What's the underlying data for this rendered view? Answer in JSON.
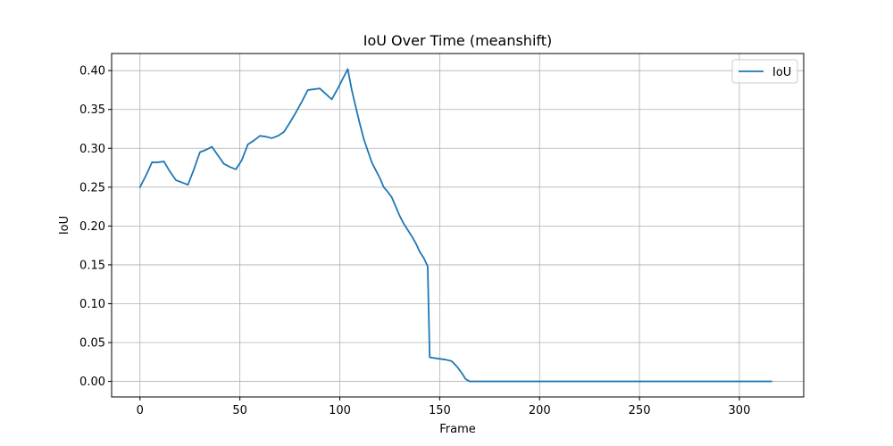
{
  "chart_data": {
    "type": "line",
    "title": "IoU Over Time (meanshift)",
    "xlabel": "Frame",
    "ylabel": "IoU",
    "xlim": [
      -14.2,
      332.2
    ],
    "ylim": [
      -0.02,
      0.422
    ],
    "xticks": [
      0,
      50,
      100,
      150,
      200,
      250,
      300
    ],
    "yticks": [
      0.0,
      0.05,
      0.1,
      0.15,
      0.2,
      0.25,
      0.3,
      0.35,
      0.4
    ],
    "xtick_labels": [
      "0",
      "50",
      "100",
      "150",
      "200",
      "250",
      "300"
    ],
    "ytick_labels": [
      "0.00",
      "0.05",
      "0.10",
      "0.15",
      "0.20",
      "0.25",
      "0.30",
      "0.35",
      "0.40"
    ],
    "grid": true,
    "legend_position": "top-right",
    "series_color": "#1f77b4",
    "series": [
      {
        "name": "IoU",
        "x": [
          0,
          3,
          6,
          9,
          12,
          15,
          18,
          21,
          24,
          27,
          30,
          33,
          36,
          39,
          42,
          45,
          48,
          51,
          54,
          57,
          60,
          63,
          66,
          69,
          72,
          75,
          78,
          81,
          84,
          87,
          90,
          93,
          96,
          99,
          102,
          104,
          106,
          108,
          110,
          112,
          114,
          116,
          118,
          120,
          122,
          124,
          126,
          128,
          130,
          132,
          134,
          136,
          138,
          140,
          142,
          144,
          145,
          150,
          153,
          156,
          159,
          161,
          163,
          165,
          170,
          200,
          250,
          300,
          316
        ],
        "values": [
          0.25,
          0.265,
          0.282,
          0.282,
          0.283,
          0.27,
          0.259,
          0.256,
          0.253,
          0.273,
          0.295,
          0.298,
          0.302,
          0.291,
          0.28,
          0.276,
          0.273,
          0.285,
          0.305,
          0.31,
          0.316,
          0.315,
          0.313,
          0.316,
          0.321,
          0.333,
          0.346,
          0.36,
          0.375,
          0.376,
          0.377,
          0.37,
          0.363,
          0.377,
          0.392,
          0.402,
          0.375,
          0.353,
          0.332,
          0.312,
          0.297,
          0.282,
          0.272,
          0.262,
          0.25,
          0.244,
          0.237,
          0.225,
          0.213,
          0.203,
          0.195,
          0.187,
          0.178,
          0.167,
          0.159,
          0.148,
          0.031,
          0.029,
          0.028,
          0.026,
          0.018,
          0.011,
          0.003,
          0.0,
          0.0,
          0.0,
          0.0,
          0.0,
          0.0
        ]
      }
    ]
  }
}
